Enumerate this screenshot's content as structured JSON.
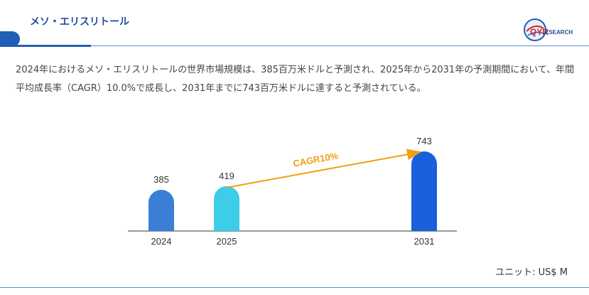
{
  "header": {
    "title": "メソ・エリスリトール",
    "logo_main": "QYR",
    "logo_sub": "ESEARCH"
  },
  "description": "2024年におけるメソ・エリスリトールの世界市場規模は、385百万米ドルと予測され、2025年から2031年の予測期間において、年間平均成長率（CAGR）10.0%で成長し、2031年までに743百万米ドルに達すると予測されている。",
  "unit_label": "ユニット: US$ M",
  "colors": {
    "accent": "#1f5fb5",
    "arrow": "#f0a010"
  },
  "chart_data": {
    "type": "bar",
    "categories": [
      "2024",
      "2025",
      "2031"
    ],
    "values": [
      385,
      419,
      743
    ],
    "bar_colors": [
      "#3a7fd5",
      "#3ecde8",
      "#1a5fdc"
    ],
    "annotation": "CAGR10%",
    "ylim": [
      0,
      800
    ]
  }
}
